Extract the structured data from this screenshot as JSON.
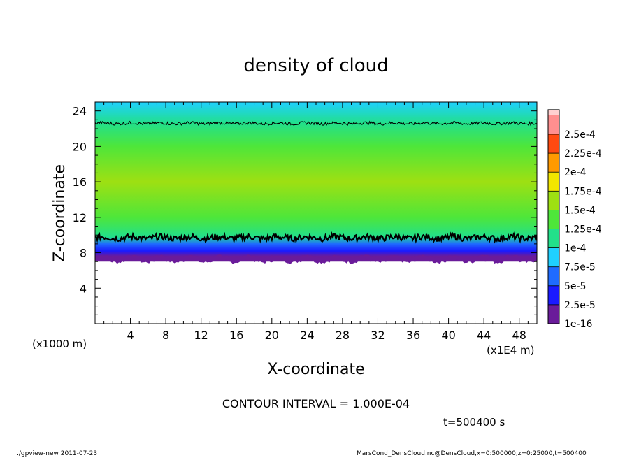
{
  "chart_data": {
    "type": "heatmap",
    "title": "density of cloud",
    "xlabel": "X-coordinate",
    "ylabel": "Z-coordinate",
    "x_unit_note": "(x1E4 m)",
    "y_unit_note": "(x1000 m)",
    "x_ticks": [
      "4",
      "8",
      "12",
      "16",
      "20",
      "24",
      "28",
      "32",
      "36",
      "40",
      "44",
      "48"
    ],
    "x_tick_values": [
      4,
      8,
      12,
      16,
      20,
      24,
      28,
      32,
      36,
      40,
      44,
      48
    ],
    "y_ticks": [
      "4",
      "8",
      "12",
      "16",
      "20",
      "24"
    ],
    "y_tick_values": [
      4,
      8,
      12,
      16,
      20,
      24
    ],
    "xlim": [
      0,
      50
    ],
    "ylim": [
      0,
      25
    ],
    "colorbar": {
      "labels": [
        "1e-16",
        "2.5e-5",
        "5e-5",
        "7.5e-5",
        "1e-4",
        "1.25e-4",
        "1.5e-4",
        "1.75e-4",
        "2e-4",
        "2.25e-4",
        "2.5e-4"
      ],
      "colors": [
        "#6a1b9a",
        "#1a1aff",
        "#1f6bff",
        "#1fd0ff",
        "#22e08a",
        "#4ee63a",
        "#9ee012",
        "#f2e600",
        "#ff9a00",
        "#ff4a10",
        "#ff8f8f",
        "#ffd0d0"
      ]
    },
    "profile": [
      {
        "z": 7.0,
        "value": 1e-16
      },
      {
        "z": 7.6,
        "value": 1e-05
      },
      {
        "z": 8.2,
        "value": 3e-05
      },
      {
        "z": 9.0,
        "value": 6e-05
      },
      {
        "z": 9.8,
        "value": 0.0001
      },
      {
        "z": 12.0,
        "value": 0.000135
      },
      {
        "z": 16.0,
        "value": 0.00015
      },
      {
        "z": 20.0,
        "value": 0.000135
      },
      {
        "z": 22.6,
        "value": 0.0001
      },
      {
        "z": 25.0,
        "value": 7.5e-05
      }
    ],
    "contour_interval": "CONTOUR INTERVAL = 1.000E-04",
    "time_label": "t=500400 s"
  },
  "footer": {
    "program": "./gpview-new  2011-07-23",
    "source": "MarsCond_DensCloud.nc@DensCloud,x=0:500000,z=0:25000,t=500400"
  }
}
